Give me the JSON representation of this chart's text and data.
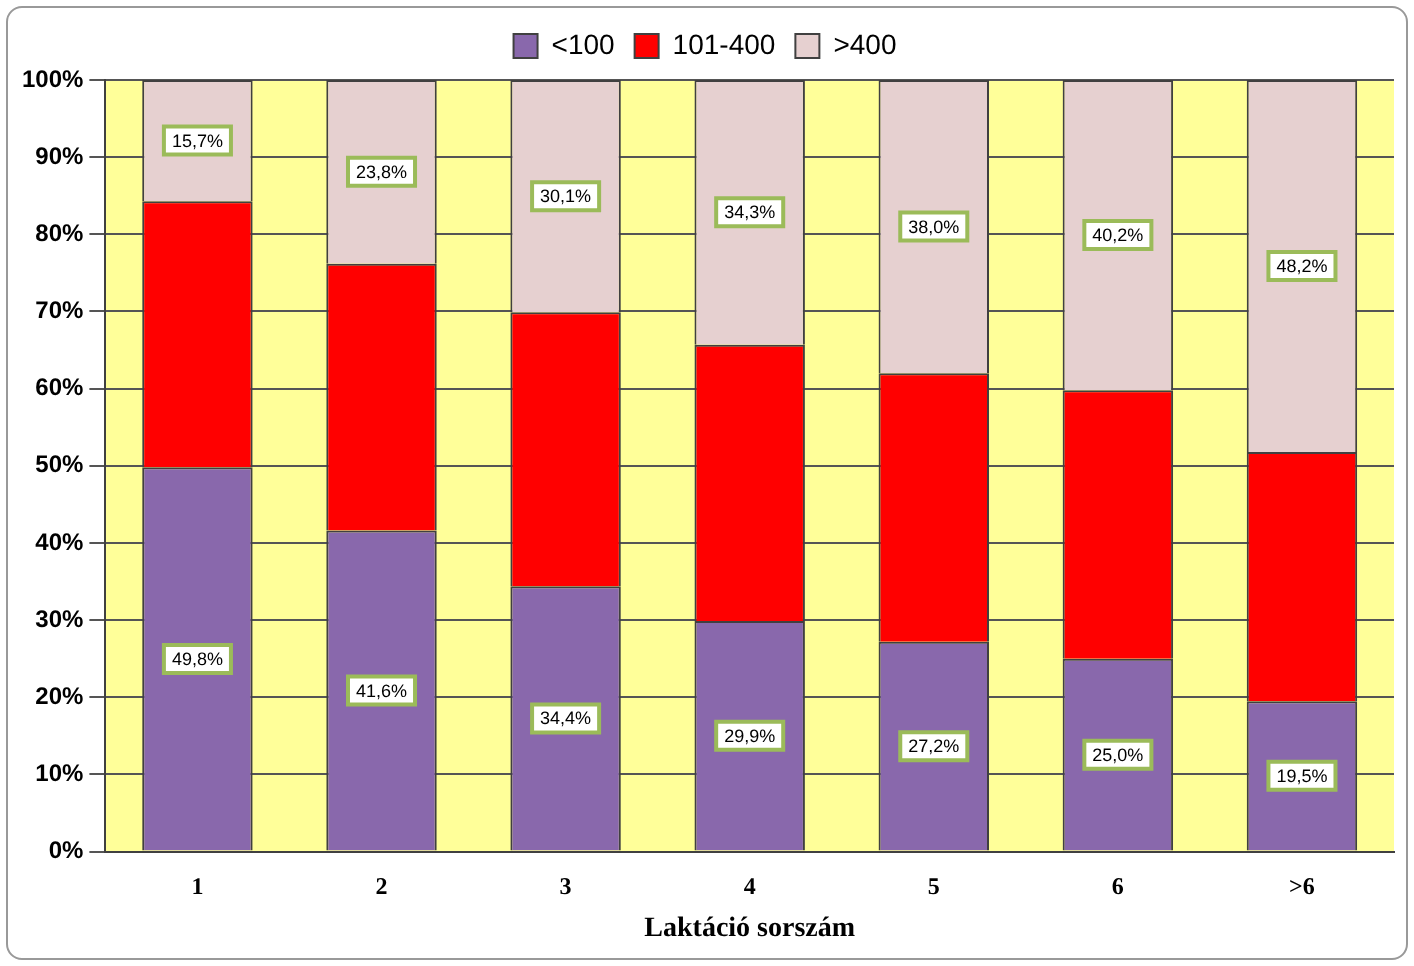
{
  "chart_data": {
    "type": "bar",
    "stacked": true,
    "xlabel": "Laktáció sorszám",
    "categories": [
      "1",
      "2",
      "3",
      "4",
      "5",
      "6",
      ">6"
    ],
    "series": [
      {
        "name": "<100",
        "color": "#8968ac",
        "values": [
          49.8,
          41.6,
          34.4,
          29.9,
          27.2,
          25.0,
          19.5
        ],
        "value_labels": [
          "49,8%",
          "41,6%",
          "34,4%",
          "29,9%",
          "27,2%",
          "25,0%",
          "19,5%"
        ]
      },
      {
        "name": "101-400",
        "color": "#ff0000",
        "values": [
          34.5,
          34.6,
          35.5,
          35.8,
          34.8,
          34.8,
          32.3
        ]
      },
      {
        "name": ">400",
        "color": "#e6d0d0",
        "values": [
          15.7,
          23.8,
          30.1,
          34.3,
          38.0,
          40.2,
          48.2
        ],
        "value_labels": [
          "15,7%",
          "23,8%",
          "30,1%",
          "34,3%",
          "38,0%",
          "40,2%",
          "48,2%"
        ]
      }
    ],
    "ylim": [
      0,
      100
    ],
    "yticks": [
      {
        "value": 0,
        "label": "0%"
      },
      {
        "value": 10,
        "label": "10%"
      },
      {
        "value": 20,
        "label": "20%"
      },
      {
        "value": 30,
        "label": "30%"
      },
      {
        "value": 40,
        "label": "40%"
      },
      {
        "value": 50,
        "label": "50%"
      },
      {
        "value": 60,
        "label": "60%"
      },
      {
        "value": 70,
        "label": "70%"
      },
      {
        "value": 80,
        "label": "80%"
      },
      {
        "value": 90,
        "label": "90%"
      },
      {
        "value": 100,
        "label": "100%"
      }
    ],
    "grid": "y",
    "legend": "top"
  }
}
